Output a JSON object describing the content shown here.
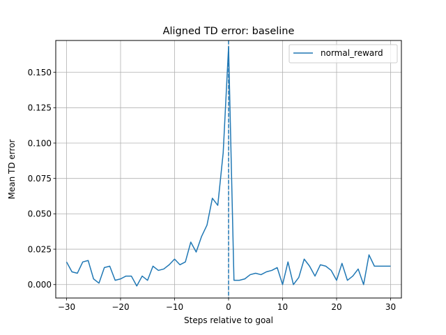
{
  "chart_data": {
    "type": "line",
    "title": "Aligned TD error: baseline",
    "xlabel": "Steps relative to goal",
    "ylabel": "Mean TD error",
    "xlim": [
      -32,
      32
    ],
    "ylim": [
      -0.0095,
      0.1725
    ],
    "xticks": [
      -30,
      -20,
      -10,
      0,
      10,
      20,
      30
    ],
    "yticks": [
      0.0,
      0.025,
      0.05,
      0.075,
      0.1,
      0.125,
      0.15
    ],
    "ytick_labels": [
      "0.000",
      "0.025",
      "0.050",
      "0.075",
      "0.100",
      "0.125",
      "0.150"
    ],
    "grid": true,
    "legend_position": "top-right",
    "vline": {
      "x": 0,
      "style": "dashed",
      "color": "#1f77b4"
    },
    "series": [
      {
        "name": "normal_reward",
        "color": "#1f77b4",
        "x": [
          -30,
          -29,
          -28,
          -27,
          -26,
          -25,
          -24,
          -23,
          -22,
          -21,
          -20,
          -19,
          -18,
          -17,
          -16,
          -15,
          -14,
          -13,
          -12,
          -11,
          -10,
          -9,
          -8,
          -7,
          -6,
          -5,
          -4,
          -3,
          -2,
          -1,
          0,
          1,
          2,
          3,
          4,
          5,
          6,
          7,
          8,
          9,
          10,
          11,
          12,
          13,
          14,
          15,
          16,
          17,
          18,
          19,
          20,
          21,
          22,
          23,
          24,
          25,
          26,
          27,
          28,
          29,
          30
        ],
        "y": [
          0.016,
          0.009,
          0.008,
          0.016,
          0.017,
          0.004,
          0.001,
          0.012,
          0.013,
          0.003,
          0.004,
          0.006,
          0.006,
          -0.001,
          0.006,
          0.003,
          0.013,
          0.01,
          0.011,
          0.014,
          0.018,
          0.014,
          0.016,
          0.03,
          0.023,
          0.034,
          0.042,
          0.061,
          0.056,
          0.093,
          0.168,
          0.003,
          0.003,
          0.004,
          0.007,
          0.008,
          0.007,
          0.009,
          0.01,
          0.012,
          0.0,
          0.016,
          0.0,
          0.005,
          0.018,
          0.013,
          0.006,
          0.014,
          0.013,
          0.01,
          0.003,
          0.015,
          0.003,
          0.006,
          0.011,
          0.0,
          0.021,
          0.013,
          0.013,
          0.013,
          0.013
        ]
      }
    ]
  }
}
